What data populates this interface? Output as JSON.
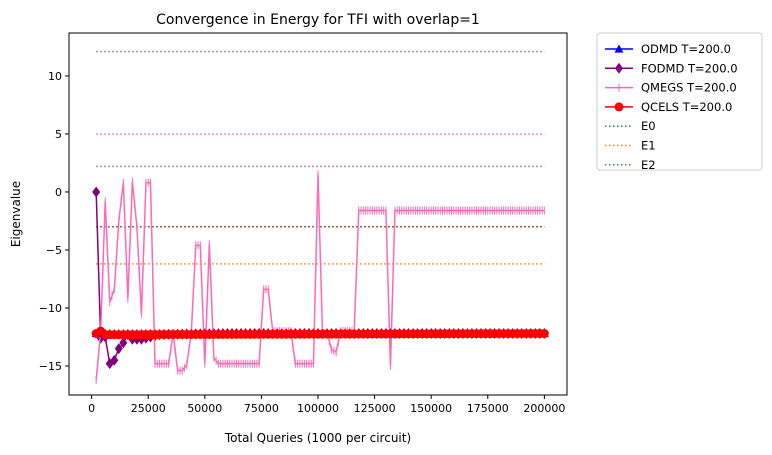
{
  "chart_data": {
    "type": "line",
    "title": "Convergence in Energy for TFI with overlap=1",
    "xlabel": "Total Queries (1000 per circuit)",
    "ylabel": "Eigenvalue",
    "xlim": [
      -10000,
      210000
    ],
    "ylim": [
      -17.5,
      13.7
    ],
    "grid": false,
    "legend_placement": "outside-top-right",
    "x_ticks": [
      {
        "value": 0,
        "label": "0"
      },
      {
        "value": 25000,
        "label": "25000"
      },
      {
        "value": 50000,
        "label": "50000"
      },
      {
        "value": 75000,
        "label": "75000"
      },
      {
        "value": 100000,
        "label": "100000"
      },
      {
        "value": 125000,
        "label": "125000"
      },
      {
        "value": 150000,
        "label": "150000"
      },
      {
        "value": 175000,
        "label": "175000"
      },
      {
        "value": 200000,
        "label": "200000"
      }
    ],
    "y_ticks": [
      {
        "value": -15,
        "label": "−15"
      },
      {
        "value": -10,
        "label": "−10"
      },
      {
        "value": -5,
        "label": "−5"
      },
      {
        "value": 0,
        "label": "0"
      },
      {
        "value": 5,
        "label": "5"
      },
      {
        "value": 10,
        "label": "10"
      }
    ],
    "series": [
      {
        "name": "ODMD T=200.0",
        "color": "#0000ff",
        "marker": "triangle",
        "linestyle": "solid",
        "x": [
          2000,
          200000
        ],
        "y": [
          -12.2,
          -12.2
        ]
      },
      {
        "name": "FODMD T=200.0",
        "color": "#800080",
        "marker": "diamond",
        "linestyle": "solid",
        "x": [
          2000,
          4000,
          6000,
          8000,
          10000,
          12000,
          14000,
          16000,
          18000,
          20000,
          22000,
          24000,
          26000,
          30000,
          40000,
          60000,
          80000,
          100000,
          120000,
          140000,
          160000,
          180000,
          200000
        ],
        "y": [
          0.0,
          -12.6,
          -12.5,
          -14.8,
          -14.5,
          -13.5,
          -13.0,
          -12.3,
          -12.7,
          -12.7,
          -12.7,
          -12.6,
          -12.5,
          -12.3,
          -12.25,
          -12.2,
          -12.2,
          -12.2,
          -12.2,
          -12.2,
          -12.2,
          -12.2,
          -12.2
        ]
      },
      {
        "name": "QMEGS T=200.0",
        "color": "#ff69b4",
        "marker": "vline",
        "linestyle": "solid",
        "x": [
          2000,
          4000,
          6000,
          8000,
          10000,
          12000,
          14000,
          16000,
          18000,
          20000,
          22000,
          24000,
          26000,
          28000,
          30000,
          34000,
          36000,
          38000,
          40000,
          42000,
          44000,
          46000,
          48000,
          50000,
          52000,
          54000,
          56000,
          58000,
          74000,
          76000,
          78000,
          80000,
          88000,
          90000,
          92000,
          98000,
          100000,
          102000,
          104000,
          106000,
          108000,
          110000,
          114000,
          116000,
          118000,
          130000,
          132000,
          134000,
          136000,
          200000
        ],
        "y": [
          -16.2,
          -12.0,
          -0.8,
          -9.5,
          -8.4,
          -2.5,
          0.8,
          -9.2,
          0.9,
          -3.0,
          -10.5,
          0.8,
          0.8,
          -14.8,
          -14.8,
          -14.8,
          -12.2,
          -15.4,
          -15.4,
          -14.9,
          -12.2,
          -4.6,
          -4.6,
          -14.8,
          -4.5,
          -14.3,
          -14.8,
          -14.8,
          -14.8,
          -8.4,
          -8.4,
          -12.0,
          -12.0,
          -14.8,
          -14.8,
          -14.8,
          1.5,
          -12.2,
          -12.1,
          -13.6,
          -13.8,
          -12.0,
          -12.0,
          -12.0,
          -1.6,
          -1.6,
          -15.0,
          -1.6,
          -1.6,
          -1.6
        ]
      },
      {
        "name": "QCELS T=200.0",
        "color": "#ff0000",
        "marker": "circle",
        "linestyle": "solid",
        "x": [
          2000,
          4000,
          6000,
          200000
        ],
        "y": [
          -12.2,
          -12.0,
          -12.3,
          -12.2
        ]
      },
      {
        "name": "E0",
        "color": "#1f77b4",
        "marker": "none",
        "linestyle": "dotted",
        "hline": -12.2
      },
      {
        "name": "E1",
        "color": "#ff7f0e",
        "marker": "none",
        "linestyle": "dotted",
        "hline": -6.2
      },
      {
        "name": "E2",
        "color": "#2ca02c",
        "marker": "none",
        "linestyle": "dotted",
        "hline": -3.0
      }
    ],
    "extra_hlines": [
      {
        "y": -3.0,
        "color": "#d62728"
      },
      {
        "y": -3.0,
        "color": "#8c564b"
      },
      {
        "y": 2.2,
        "color": "#9467bd"
      },
      {
        "y": 5.0,
        "color": "#e377c2"
      },
      {
        "y": 12.1,
        "color": "#7f7f7f"
      }
    ]
  }
}
